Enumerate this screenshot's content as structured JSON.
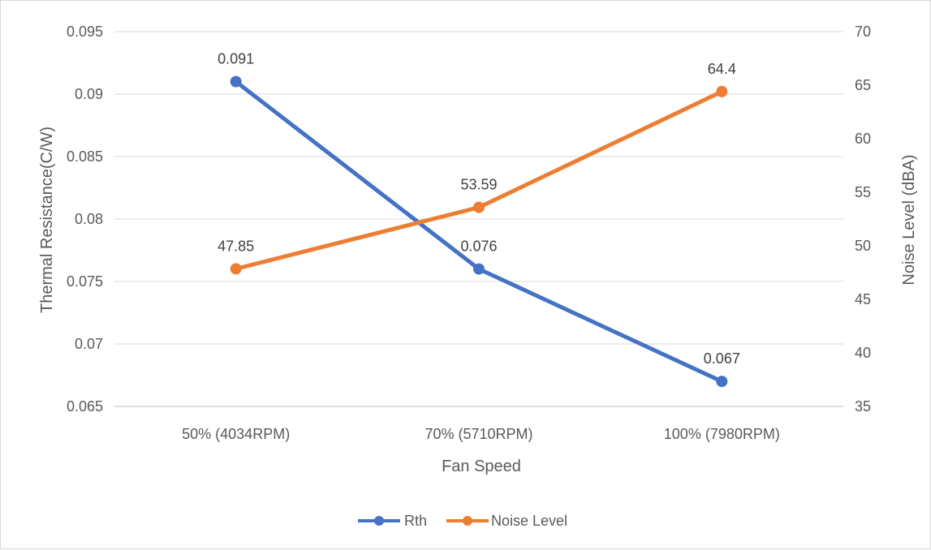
{
  "chart_data": {
    "type": "line",
    "categories": [
      "50% (4034RPM)",
      "70% (5710RPM)",
      "100% (7980RPM)"
    ],
    "xlabel": "Fan Speed",
    "ylabel": "Thermal Resistance(C/W)",
    "y2label": "Noise Level (dBA)",
    "ylim": [
      0.065,
      0.095
    ],
    "yticks": [
      "0.065",
      "0.07",
      "0.075",
      "0.08",
      "0.085",
      "0.09",
      "0.095"
    ],
    "y2lim": [
      35,
      70
    ],
    "y2ticks": [
      "35",
      "40",
      "45",
      "50",
      "55",
      "60",
      "65",
      "70"
    ],
    "grid": true,
    "legend_position": "bottom",
    "series": [
      {
        "name": "Rth",
        "axis": "left",
        "color": "#4472C4",
        "values": [
          0.091,
          0.076,
          0.067
        ],
        "labels": [
          "0.091",
          "0.076",
          "0.067"
        ]
      },
      {
        "name": "Noise Level",
        "axis": "right",
        "color": "#ED7D31",
        "values": [
          47.85,
          53.59,
          64.4
        ],
        "labels": [
          "47.85",
          "53.59",
          "64.4"
        ]
      }
    ]
  }
}
